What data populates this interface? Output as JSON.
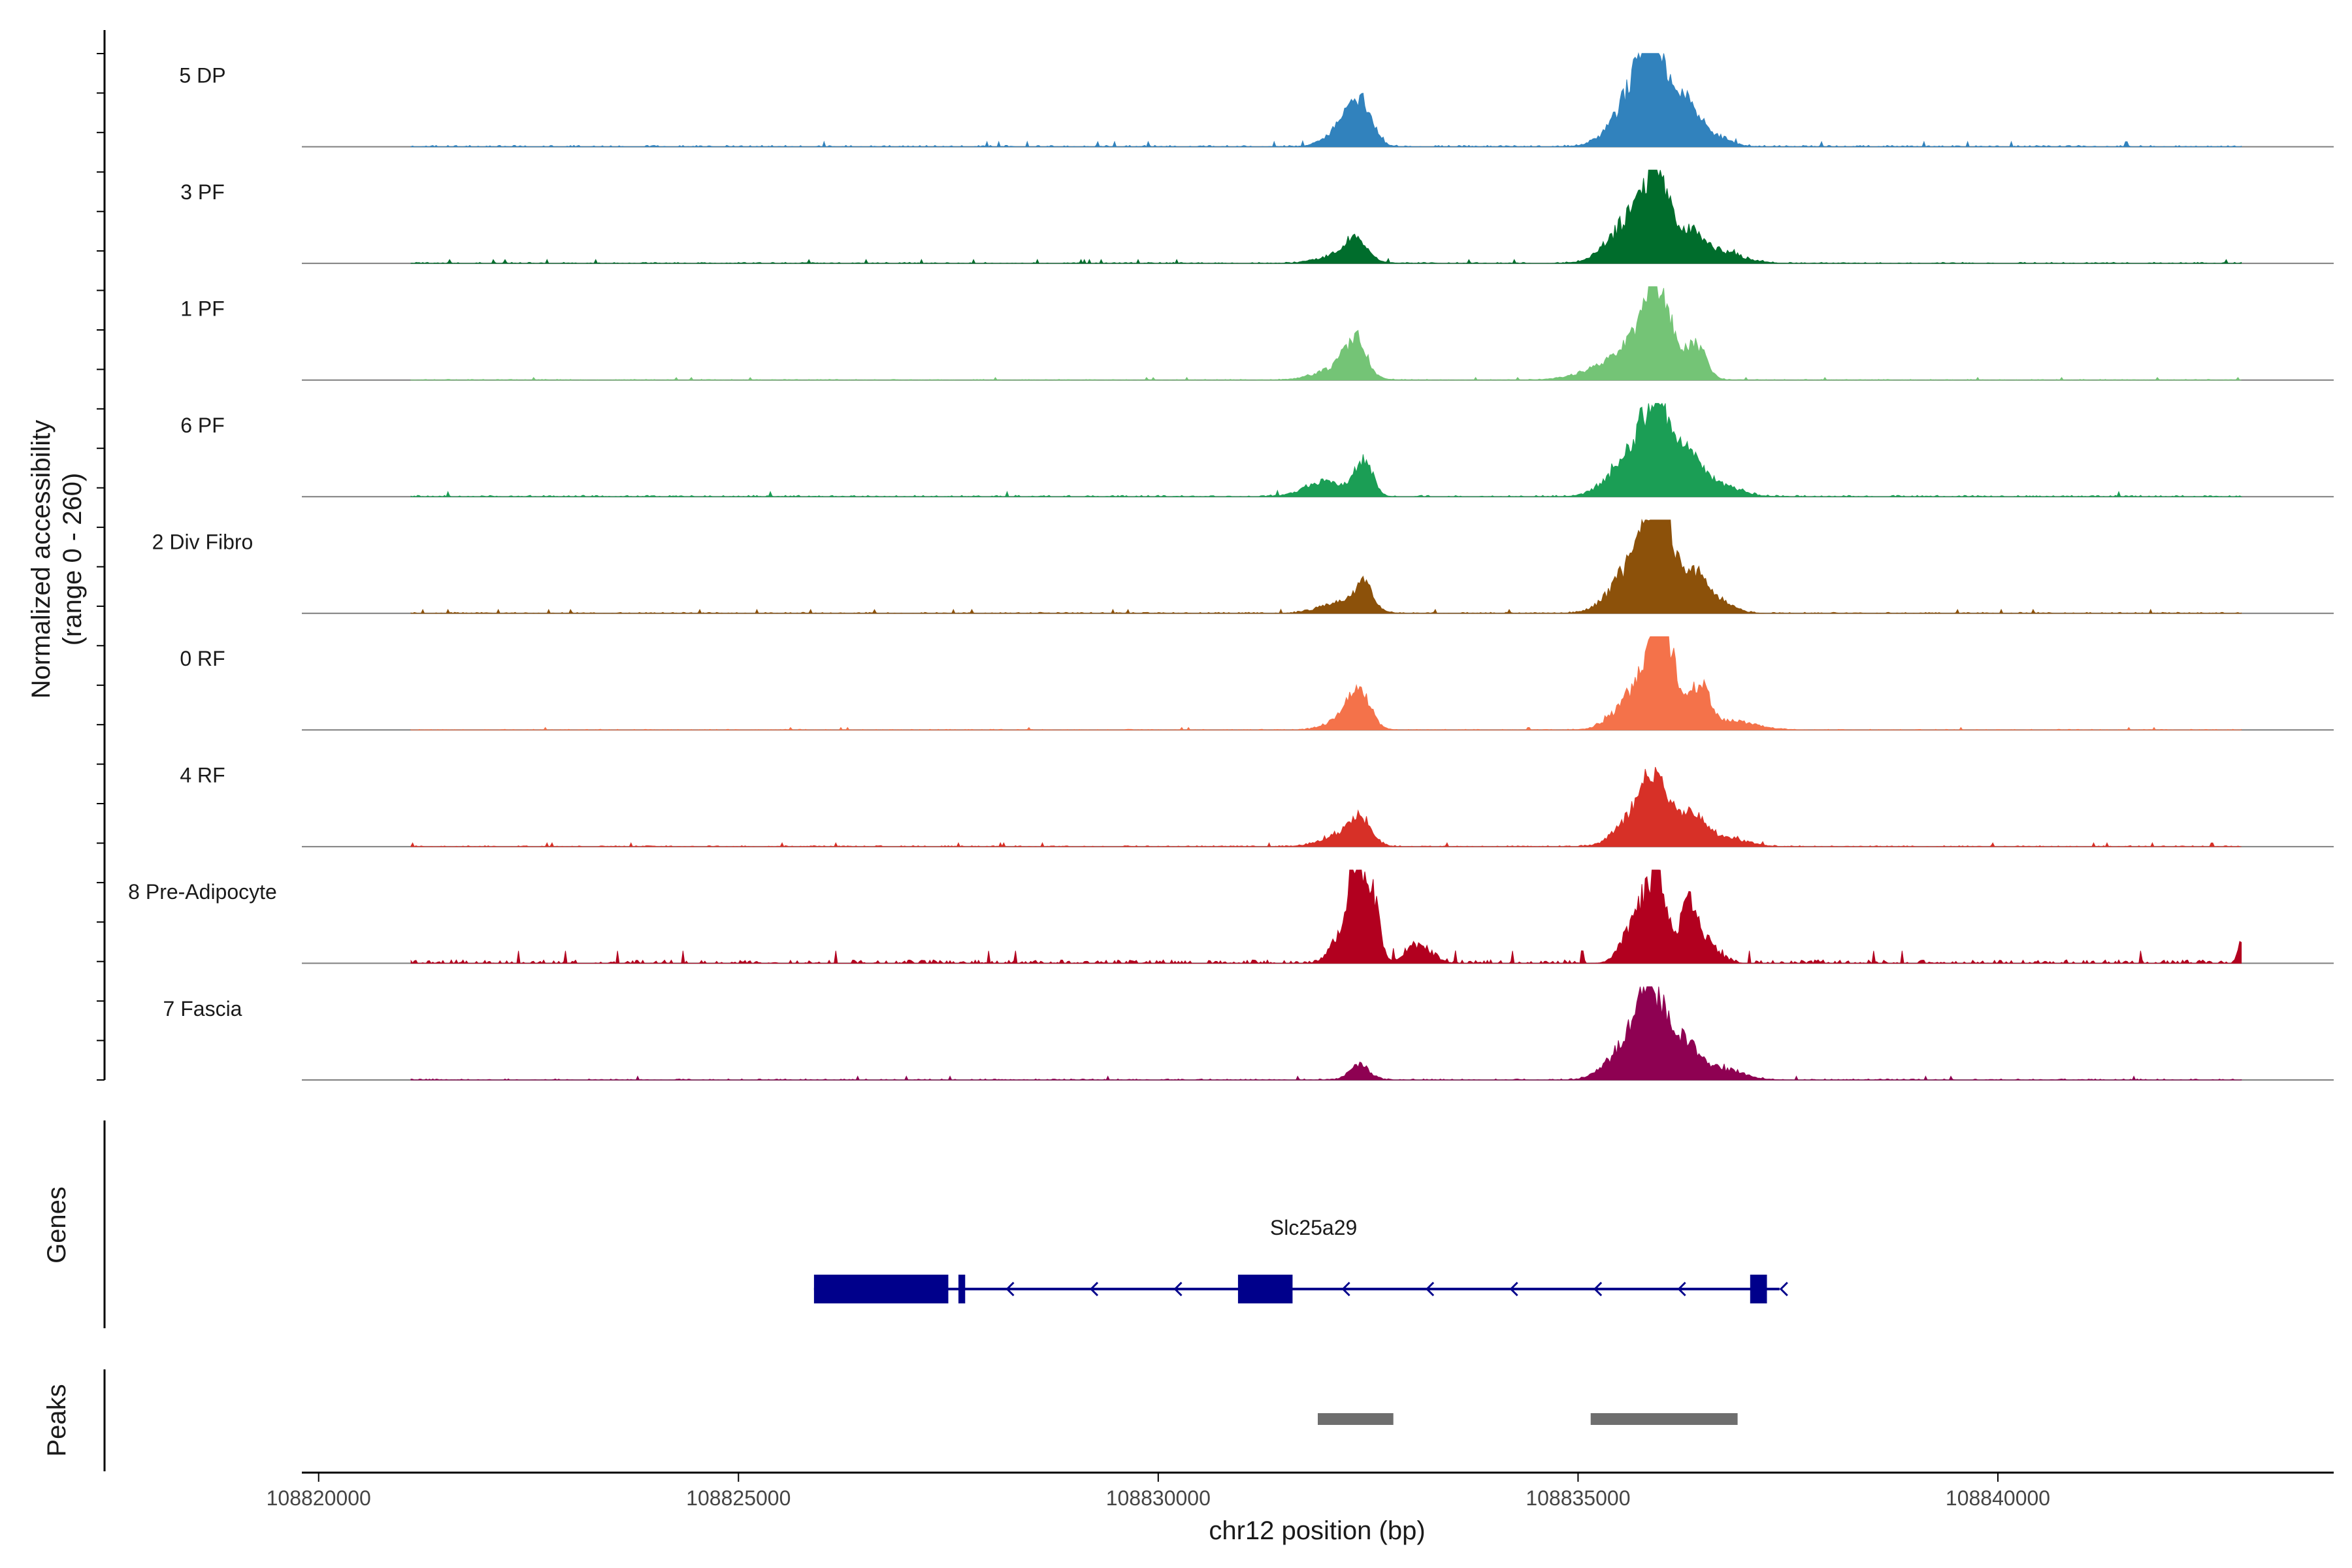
{
  "chart_data": {
    "type": "area",
    "title": "",
    "ylabel": "Normalized accessibility\n(range 0 - 260)",
    "y_range_label": "(range 0 - 260)",
    "ylim": [
      0,
      260
    ],
    "xlabel": "chr12 position (bp)",
    "xlim": [
      108819800,
      108844000
    ],
    "x_ticks": [
      108820000,
      108825000,
      108830000,
      108835000,
      108840000
    ],
    "x_tick_labels": [
      "108820000",
      "108825000",
      "108830000",
      "108835000",
      "108840000"
    ],
    "region": {
      "start": 108821100,
      "end": 108842900
    },
    "series": [
      {
        "name": "5 DP",
        "color": "#3182BD",
        "noise": 4,
        "peaks": [
          [
            108832400,
            100,
            130
          ],
          [
            108832250,
            60,
            200
          ],
          [
            108835900,
            230,
            170
          ],
          [
            108835700,
            140,
            260
          ],
          [
            108836300,
            80,
            120
          ],
          [
            108836500,
            40,
            220
          ]
        ]
      },
      {
        "name": "3 PF",
        "color": "#006D2C",
        "noise": 3,
        "peaks": [
          [
            108832350,
            55,
            120
          ],
          [
            108832200,
            25,
            250
          ],
          [
            108835950,
            190,
            160
          ],
          [
            108835650,
            120,
            260
          ],
          [
            108836350,
            70,
            140
          ],
          [
            108836700,
            30,
            260
          ]
        ]
      },
      {
        "name": "1 PF",
        "color": "#74C476",
        "noise": 2,
        "peaks": [
          [
            108832350,
            95,
            120
          ],
          [
            108832150,
            35,
            250
          ],
          [
            108835950,
            210,
            150
          ],
          [
            108835750,
            100,
            250
          ],
          [
            108836400,
            95,
            120
          ],
          [
            108835300,
            30,
            300
          ]
        ]
      },
      {
        "name": "6 PF",
        "color": "#1B9E55",
        "noise": 4,
        "peaks": [
          [
            108832450,
            100,
            100
          ],
          [
            108832000,
            40,
            250
          ],
          [
            108835950,
            210,
            170
          ],
          [
            108835650,
            110,
            260
          ],
          [
            108836300,
            90,
            140
          ],
          [
            108836600,
            40,
            260
          ]
        ]
      },
      {
        "name": "2 Div Fibro",
        "color": "#8C510A",
        "noise": 3,
        "peaks": [
          [
            108832450,
            70,
            100
          ],
          [
            108832200,
            30,
            250
          ],
          [
            108835950,
            250,
            160
          ],
          [
            108835700,
            140,
            260
          ],
          [
            108836350,
            90,
            140
          ],
          [
            108836600,
            40,
            200
          ]
        ]
      },
      {
        "name": "0 RF",
        "color": "#F4724A",
        "noise": 2,
        "peaks": [
          [
            108832400,
            90,
            120
          ],
          [
            108832250,
            40,
            200
          ],
          [
            108836000,
            240,
            150
          ],
          [
            108835750,
            120,
            250
          ],
          [
            108836450,
            110,
            110
          ],
          [
            108836800,
            25,
            300
          ]
        ]
      },
      {
        "name": "4 RF",
        "color": "#D73027",
        "noise": 3,
        "peaks": [
          [
            108832400,
            70,
            130
          ],
          [
            108832150,
            30,
            220
          ],
          [
            108835950,
            165,
            150
          ],
          [
            108835700,
            90,
            220
          ],
          [
            108836350,
            80,
            130
          ],
          [
            108836700,
            30,
            250
          ]
        ]
      },
      {
        "name": "8 Pre-Adipocyte",
        "color": "#B2001F",
        "noise": 10,
        "peaks": [
          [
            108832350,
            260,
            90
          ],
          [
            108832550,
            180,
            80
          ],
          [
            108832150,
            60,
            120
          ],
          [
            108833100,
            50,
            150
          ],
          [
            108835950,
            230,
            110
          ],
          [
            108835700,
            130,
            150
          ],
          [
            108836300,
            150,
            90
          ],
          [
            108836500,
            70,
            150
          ],
          [
            108842900,
            70,
            40
          ]
        ]
      },
      {
        "name": "7 Fascia",
        "color": "#8E0152",
        "noise": 3,
        "peaks": [
          [
            108832400,
            40,
            120
          ],
          [
            108835900,
            200,
            170
          ],
          [
            108835650,
            110,
            240
          ],
          [
            108836300,
            90,
            150
          ],
          [
            108836700,
            30,
            250
          ]
        ]
      }
    ],
    "genes_label": "Genes",
    "gene": {
      "name": "Slc25a29",
      "strand": "-",
      "start": 108825900,
      "end": 108837400,
      "color": "#00008B",
      "exons": [
        [
          108825900,
          108827500
        ],
        [
          108827620,
          108827700
        ],
        [
          108830950,
          108831600
        ],
        [
          108837050,
          108837250
        ]
      ]
    },
    "peaks_label": "Peaks",
    "peaks_color": "#6E6E6E",
    "peak_regions": [
      [
        108831900,
        108832800
      ],
      [
        108835150,
        108836900
      ]
    ]
  }
}
